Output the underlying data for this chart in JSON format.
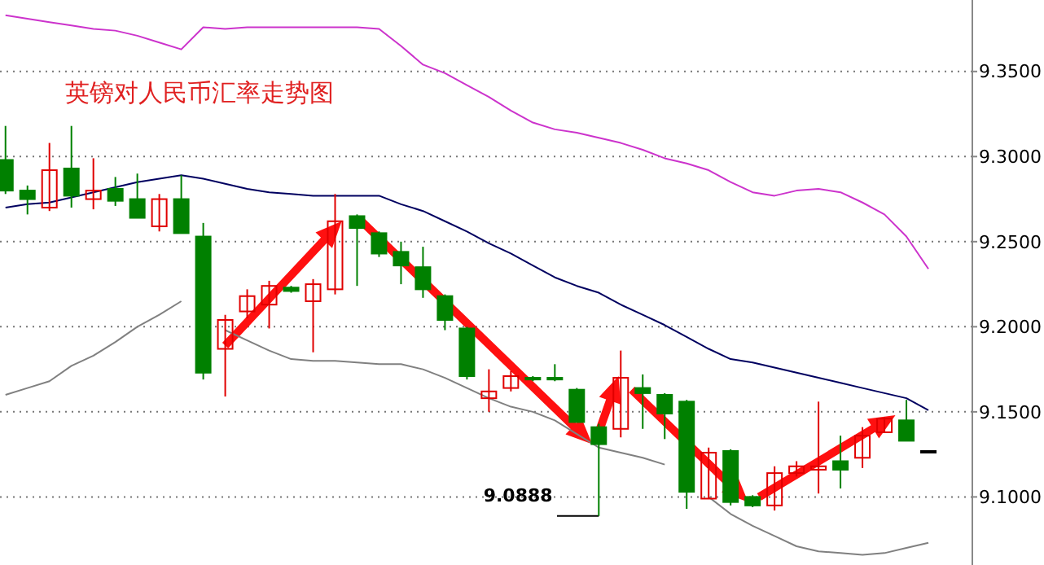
{
  "chart_data": {
    "type": "candlestick",
    "title": "英镑对人民币汇率走势图",
    "categories": [
      null,
      null,
      null,
      null,
      null,
      null,
      null,
      null,
      null,
      null,
      null,
      null,
      null,
      null,
      null,
      null,
      null,
      null,
      null,
      null,
      null,
      null,
      null,
      null,
      null,
      null,
      null,
      null,
      null,
      null,
      null,
      null,
      null,
      null,
      null,
      null,
      null,
      null,
      null,
      null,
      null,
      null,
      null
    ],
    "ohlc": [
      [
        9.298,
        9.318,
        9.278,
        9.28
      ],
      [
        9.28,
        9.283,
        9.266,
        9.275
      ],
      [
        9.27,
        9.308,
        9.268,
        9.292
      ],
      [
        9.293,
        9.318,
        9.27,
        9.277
      ],
      [
        9.275,
        9.299,
        9.269,
        9.28
      ],
      [
        9.281,
        9.288,
        9.271,
        9.274
      ],
      [
        9.275,
        9.29,
        9.264,
        9.264
      ],
      [
        9.259,
        9.278,
        9.256,
        9.275
      ],
      [
        9.275,
        9.289,
        9.255,
        9.255
      ],
      [
        9.253,
        9.261,
        9.169,
        9.173
      ],
      [
        9.187,
        9.207,
        9.159,
        9.204
      ],
      [
        9.209,
        9.222,
        9.205,
        9.218
      ],
      [
        9.213,
        9.227,
        9.199,
        9.224
      ],
      [
        9.223,
        9.224,
        9.22,
        9.221
      ],
      [
        9.215,
        9.228,
        9.185,
        9.225
      ],
      [
        9.222,
        9.278,
        9.219,
        9.262
      ],
      [
        9.265,
        9.266,
        9.224,
        9.258
      ],
      [
        9.255,
        9.256,
        9.241,
        9.243
      ],
      [
        9.244,
        9.25,
        9.225,
        9.236
      ],
      [
        9.235,
        9.247,
        9.217,
        9.222
      ],
      [
        9.218,
        9.219,
        9.198,
        9.204
      ],
      [
        9.199,
        9.2,
        9.169,
        9.171
      ],
      [
        9.158,
        9.175,
        9.15,
        9.162
      ],
      [
        9.164,
        9.174,
        9.162,
        9.171
      ],
      [
        9.17,
        9.171,
        9.168,
        9.169
      ],
      [
        9.17,
        9.178,
        9.168,
        9.169
      ],
      [
        9.163,
        9.164,
        9.144,
        9.144
      ],
      [
        9.141,
        9.143,
        9.0888,
        9.131
      ],
      [
        9.14,
        9.186,
        9.135,
        9.17
      ],
      [
        9.164,
        9.172,
        9.14,
        9.161
      ],
      [
        9.16,
        9.161,
        9.134,
        9.149
      ],
      [
        9.156,
        9.157,
        9.093,
        9.103
      ],
      [
        9.099,
        9.129,
        9.099,
        9.126
      ],
      [
        9.127,
        9.128,
        9.095,
        9.097
      ],
      [
        9.1,
        9.101,
        9.094,
        9.095
      ],
      [
        9.095,
        9.118,
        9.092,
        9.114
      ],
      [
        9.114,
        9.121,
        9.112,
        9.118
      ],
      [
        9.116,
        9.156,
        9.102,
        9.118
      ],
      [
        9.121,
        9.136,
        9.105,
        9.116
      ],
      [
        9.123,
        9.141,
        9.117,
        9.136
      ],
      [
        9.138,
        9.147,
        9.138,
        9.146
      ],
      [
        9.145,
        9.157,
        9.133,
        9.133
      ],
      [
        9.127,
        9.127,
        9.127,
        9.127
      ]
    ],
    "colors": [
      "#008000",
      "#008000",
      "#e00000",
      "#008000",
      "#e00000",
      "#008000",
      "#008000",
      "#e00000",
      "#008000",
      "#008000",
      "#e00000",
      "#e00000",
      "#e00000",
      "#008000",
      "#e00000",
      "#e00000",
      "#008000",
      "#008000",
      "#008000",
      "#008000",
      "#008000",
      "#008000",
      "#e00000",
      "#e00000",
      "#008000",
      "#008000",
      "#008000",
      "#008000",
      "#e00000",
      "#008000",
      "#008000",
      "#008000",
      "#e00000",
      "#008000",
      "#008000",
      "#e00000",
      "#e00000",
      "#e00000",
      "#008000",
      "#e00000",
      "#e00000",
      "#008000",
      "#000000"
    ],
    "series": [
      {
        "type": "line",
        "color": "#cc33cc",
        "values": [
          9.383,
          9.381,
          9.379,
          9.377,
          9.375,
          9.374,
          9.371,
          9.367,
          9.363,
          9.376,
          9.375,
          9.376,
          9.376,
          9.376,
          9.376,
          9.376,
          9.376,
          9.375,
          9.365,
          9.354,
          9.349,
          9.342,
          9.335,
          9.327,
          9.32,
          9.316,
          9.314,
          9.311,
          9.308,
          9.304,
          9.299,
          9.296,
          9.292,
          9.285,
          9.279,
          9.277,
          9.28,
          9.281,
          9.279,
          9.273,
          9.266,
          9.253,
          9.234
        ]
      },
      {
        "type": "line",
        "color": "#000060",
        "values": [
          9.27,
          9.272,
          9.273,
          9.276,
          9.279,
          9.282,
          9.285,
          9.287,
          9.289,
          9.287,
          9.284,
          9.281,
          9.279,
          9.278,
          9.277,
          9.277,
          9.277,
          9.277,
          9.272,
          9.268,
          9.262,
          9.256,
          9.249,
          9.243,
          9.236,
          9.229,
          9.224,
          9.22,
          9.213,
          9.207,
          9.201,
          9.194,
          9.187,
          9.181,
          9.179,
          9.176,
          9.173,
          9.17,
          9.167,
          9.164,
          9.161,
          9.158,
          9.151
        ]
      },
      {
        "type": "line",
        "color": "#808080",
        "values": [
          9.16,
          9.164,
          9.168,
          9.177,
          9.183,
          9.191,
          9.2,
          9.207,
          9.215,
          null,
          9.198,
          9.192,
          9.186,
          9.181,
          9.18,
          9.18,
          9.179,
          9.178,
          9.178,
          9.175,
          9.17,
          9.164,
          9.158,
          9.153,
          9.15,
          9.145,
          9.137,
          9.129,
          9.126,
          9.123,
          9.119,
          null,
          9.1,
          9.09,
          9.083,
          9.077,
          9.071,
          9.068,
          9.067,
          9.066,
          9.067,
          9.07,
          9.073
        ]
      }
    ],
    "ylim": [
      9.06,
      9.392
    ],
    "yticks": [
      {
        "value": 9.1,
        "label": "9.1000"
      },
      {
        "value": 9.15,
        "label": "9.1500"
      },
      {
        "value": 9.2,
        "label": "9.2000"
      },
      {
        "value": 9.25,
        "label": "9.2500"
      },
      {
        "value": 9.3,
        "label": "9.3000"
      },
      {
        "value": 9.35,
        "label": "9.3500"
      }
    ],
    "grid": "y",
    "tick_labels": "y",
    "annotations": [
      "9.0888"
    ]
  }
}
